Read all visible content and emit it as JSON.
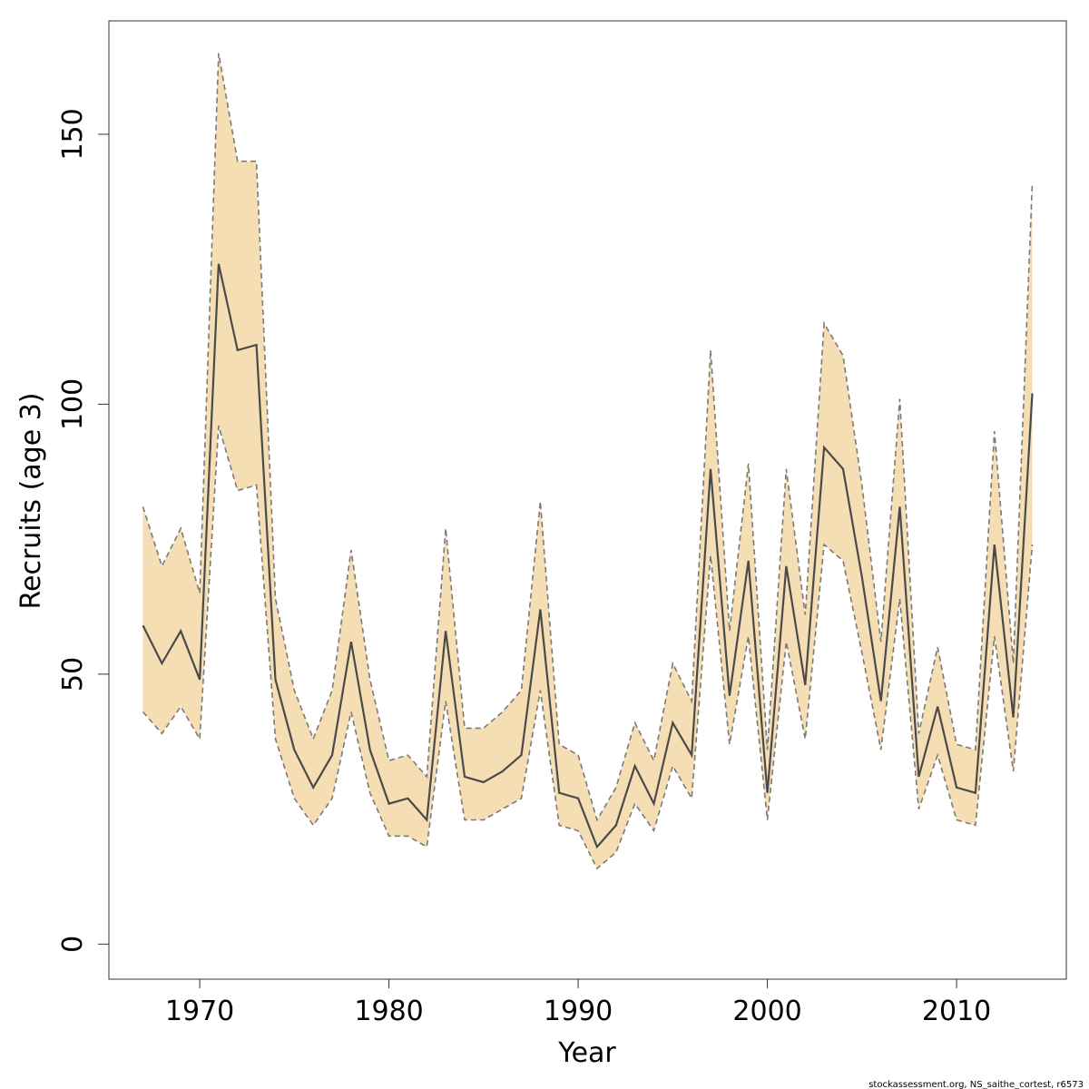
{
  "chart_data": {
    "type": "line",
    "xlabel": "Year",
    "ylabel": "Recruits (age 3)",
    "xlim": [
      1965.2,
      2015.8
    ],
    "ylim": [
      -6.5,
      171
    ],
    "x_ticks": [
      1970,
      1980,
      1990,
      2000,
      2010
    ],
    "y_ticks": [
      0,
      50,
      100,
      150
    ],
    "grid": false,
    "colors": {
      "band": "#f5deb3",
      "line": "#4a4a4a",
      "bounds": "#7a7a7a"
    },
    "x": [
      1967,
      1968,
      1969,
      1970,
      1971,
      1972,
      1973,
      1974,
      1975,
      1976,
      1977,
      1978,
      1979,
      1980,
      1981,
      1982,
      1983,
      1984,
      1985,
      1986,
      1987,
      1988,
      1989,
      1990,
      1991,
      1992,
      1993,
      1994,
      1995,
      1996,
      1997,
      1998,
      1999,
      2000,
      2001,
      2002,
      2003,
      2004,
      2005,
      2006,
      2007,
      2008,
      2009,
      2010,
      2011,
      2012,
      2013,
      2014
    ],
    "series": [
      {
        "role": "estimate",
        "values": [
          59,
          52,
          58,
          49,
          126,
          110,
          111,
          49,
          36,
          29,
          35,
          56,
          36,
          26,
          27,
          23,
          58,
          31,
          30,
          32,
          35,
          62,
          28,
          27,
          18,
          22,
          33,
          26,
          41,
          35,
          88,
          46,
          71,
          28,
          70,
          48,
          92,
          88,
          68,
          45,
          81,
          31,
          44,
          29,
          28,
          74,
          42,
          102
        ]
      },
      {
        "role": "upper",
        "values": [
          81,
          70,
          77,
          65,
          165,
          145,
          145,
          64,
          47,
          38,
          47,
          73,
          49,
          34,
          35,
          31,
          77,
          40,
          40,
          43,
          47,
          82,
          37,
          35,
          23,
          29,
          41,
          34,
          52,
          45,
          110,
          58,
          89,
          36,
          88,
          61,
          115,
          109,
          85,
          56,
          101,
          39,
          55,
          37,
          36,
          95,
          52,
          141
        ]
      },
      {
        "role": "lower",
        "values": [
          43,
          39,
          44,
          38,
          96,
          84,
          85,
          38,
          27,
          22,
          27,
          43,
          28,
          20,
          20,
          18,
          45,
          23,
          23,
          25,
          27,
          47,
          22,
          21,
          14,
          17,
          26,
          21,
          33,
          27,
          72,
          37,
          57,
          23,
          56,
          38,
          74,
          71,
          54,
          36,
          64,
          25,
          35,
          23,
          22,
          57,
          32,
          74
        ]
      }
    ]
  },
  "footer": {
    "credit": "stockassessment.org, NS_saithe_cortest, r6573"
  }
}
